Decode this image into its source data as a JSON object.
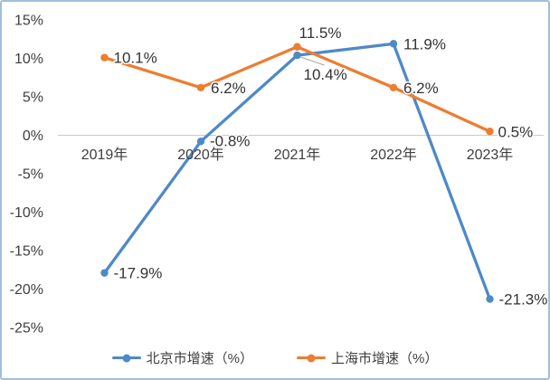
{
  "chart_data": {
    "type": "line",
    "title": "",
    "categories": [
      "2019年",
      "2020年",
      "2021年",
      "2022年",
      "2023年"
    ],
    "series": [
      {
        "name": "北京市增速（%）",
        "color": "#4E89C8",
        "values": [
          -17.9,
          -0.8,
          10.4,
          11.9,
          -21.3
        ],
        "point_labels": [
          "-17.9%",
          "-0.8%",
          "10.4%",
          "11.9%",
          "-21.3%"
        ]
      },
      {
        "name": "上海市增速（%）",
        "color": "#ED7D31",
        "values": [
          10.1,
          6.2,
          11.5,
          6.2,
          0.5
        ],
        "point_labels": [
          "10.1%",
          "6.2%",
          "11.5%",
          "6.2%",
          "0.5%"
        ]
      }
    ],
    "y_axis": {
      "tick_labels": [
        "15%",
        "10%",
        "5%",
        "0%",
        "-5%",
        "-10%",
        "-15%",
        "-20%",
        "-25%"
      ],
      "tick_values": [
        15,
        10,
        5,
        0,
        -5,
        -10,
        -15,
        -20,
        -25
      ],
      "min": -25,
      "max": 15,
      "gridline_at": 0
    },
    "xlabel": "",
    "ylabel": "",
    "grid": "zero-line-only",
    "legend_position": "bottom",
    "colors": {
      "frame_border": "#9FBFDC",
      "gridline": "#C9C9C9",
      "axis_text": "#3F3F3F",
      "label_text": "#333333",
      "leader_line": "#999999",
      "background": "#FFFFFF"
    }
  }
}
